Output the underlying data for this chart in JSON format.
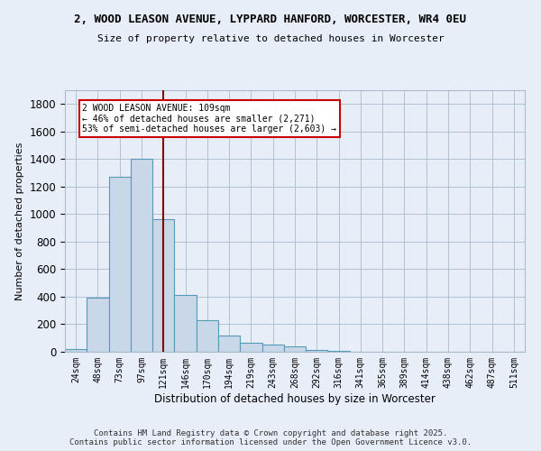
{
  "title_line1": "2, WOOD LEASON AVENUE, LYPPARD HANFORD, WORCESTER, WR4 0EU",
  "title_line2": "Size of property relative to detached houses in Worcester",
  "xlabel": "Distribution of detached houses by size in Worcester",
  "ylabel": "Number of detached properties",
  "bar_color": "#c8d8e8",
  "bar_edge_color": "#5599bb",
  "categories": [
    "24sqm",
    "48sqm",
    "73sqm",
    "97sqm",
    "121sqm",
    "146sqm",
    "170sqm",
    "194sqm",
    "219sqm",
    "243sqm",
    "268sqm",
    "292sqm",
    "316sqm",
    "341sqm",
    "365sqm",
    "389sqm",
    "414sqm",
    "438sqm",
    "462sqm",
    "487sqm",
    "511sqm"
  ],
  "values": [
    18,
    390,
    1270,
    1400,
    960,
    415,
    230,
    115,
    65,
    55,
    40,
    15,
    5,
    3,
    2,
    1,
    1,
    0,
    0,
    0,
    0
  ],
  "ylim": [
    0,
    1900
  ],
  "yticks": [
    0,
    200,
    400,
    600,
    800,
    1000,
    1200,
    1400,
    1600,
    1800
  ],
  "property_line_x": 4.0,
  "annotation_text": "2 WOOD LEASON AVENUE: 109sqm\n← 46% of detached houses are smaller (2,271)\n53% of semi-detached houses are larger (2,603) →",
  "annotation_box_color": "#ffffff",
  "annotation_box_edge": "#cc0000",
  "vline_color": "#880000",
  "background_color": "#e8eef8",
  "footer_line1": "Contains HM Land Registry data © Crown copyright and database right 2025.",
  "footer_line2": "Contains public sector information licensed under the Open Government Licence v3.0."
}
